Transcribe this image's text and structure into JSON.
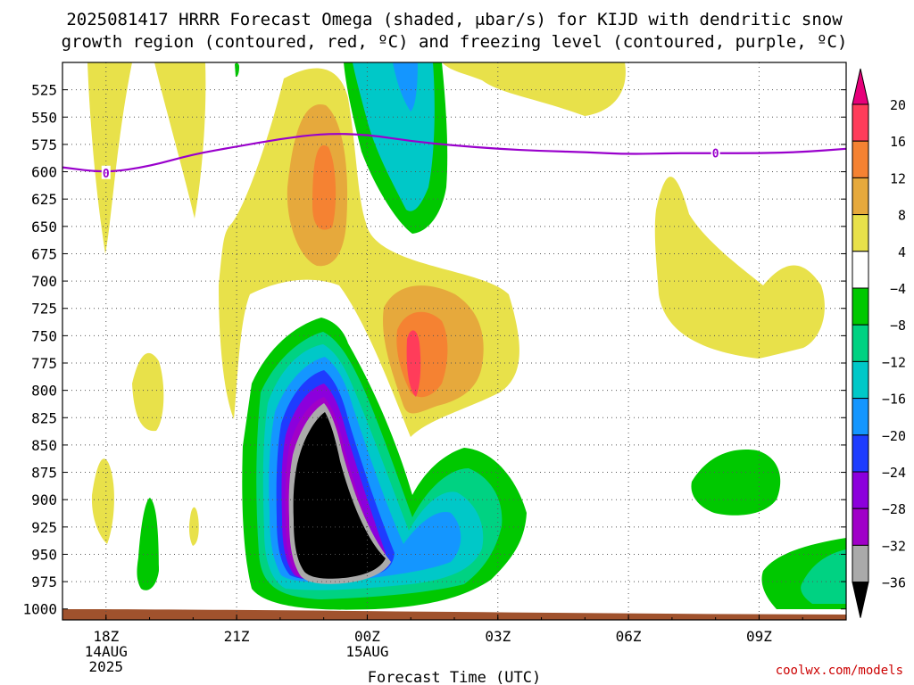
{
  "chart_data": {
    "type": "heatmap",
    "title_line1": "2025081417 HRRR Forecast Omega (shaded, μbar/s) for KIJD with dendritic snow",
    "title_line2": "growth region (contoured, red, ºC) and freezing level (contoured, purple, ºC)",
    "xlabel": "Forecast Time (UTC)",
    "ylabel": "",
    "credit": "coolwx.com/models",
    "x_ticks": [
      {
        "label": "18Z",
        "sub1": "14AUG",
        "sub2": "2025",
        "hours": 1
      },
      {
        "label": "21Z",
        "sub1": "",
        "sub2": "",
        "hours": 4
      },
      {
        "label": "00Z",
        "sub1": "15AUG",
        "sub2": "",
        "hours": 7
      },
      {
        "label": "03Z",
        "sub1": "",
        "sub2": "",
        "hours": 10
      },
      {
        "label": "06Z",
        "sub1": "",
        "sub2": "",
        "hours": 13
      },
      {
        "label": "09Z",
        "sub1": "",
        "sub2": "",
        "hours": 16
      }
    ],
    "xlim_hours": [
      0,
      18
    ],
    "y_ticks": [
      525,
      550,
      575,
      600,
      625,
      650,
      675,
      700,
      725,
      750,
      775,
      800,
      825,
      850,
      875,
      900,
      925,
      950,
      975,
      1000
    ],
    "ylim_pressure_mb": [
      500,
      1010
    ],
    "grid": true,
    "colorbar": {
      "labels": [
        "20",
        "16",
        "12",
        "8",
        "4",
        "−4",
        "−8",
        "−12",
        "−16",
        "−20",
        "−24",
        "−28",
        "−32",
        "−36"
      ],
      "colors": [
        "#ff3c5a",
        "#f58232",
        "#e6a93c",
        "#e8e14a",
        "#ffffff",
        "#00c800",
        "#00d282",
        "#00c8c8",
        "#1496ff",
        "#1e3cff",
        "#8c00dc",
        "#a000c8",
        "#aaaaaa",
        "#000000"
      ],
      "top_arrow_color": "#e6007a",
      "bottom_arrow_color": "#000000"
    },
    "freezing_level": {
      "color": "#9900cc",
      "label": "0",
      "points": [
        [
          0,
          596
        ],
        [
          1,
          601
        ],
        [
          2,
          595
        ],
        [
          3,
          584
        ],
        [
          4,
          577
        ],
        [
          5,
          570
        ],
        [
          6,
          565
        ],
        [
          7,
          566
        ],
        [
          8,
          572
        ],
        [
          9,
          576
        ],
        [
          10,
          579
        ],
        [
          11,
          581
        ],
        [
          12,
          582
        ],
        [
          13,
          584
        ],
        [
          14,
          583
        ],
        [
          15,
          583
        ],
        [
          16,
          583
        ],
        [
          17,
          582
        ],
        [
          18,
          579
        ]
      ],
      "label_positions_hours": [
        1,
        15
      ]
    }
  }
}
